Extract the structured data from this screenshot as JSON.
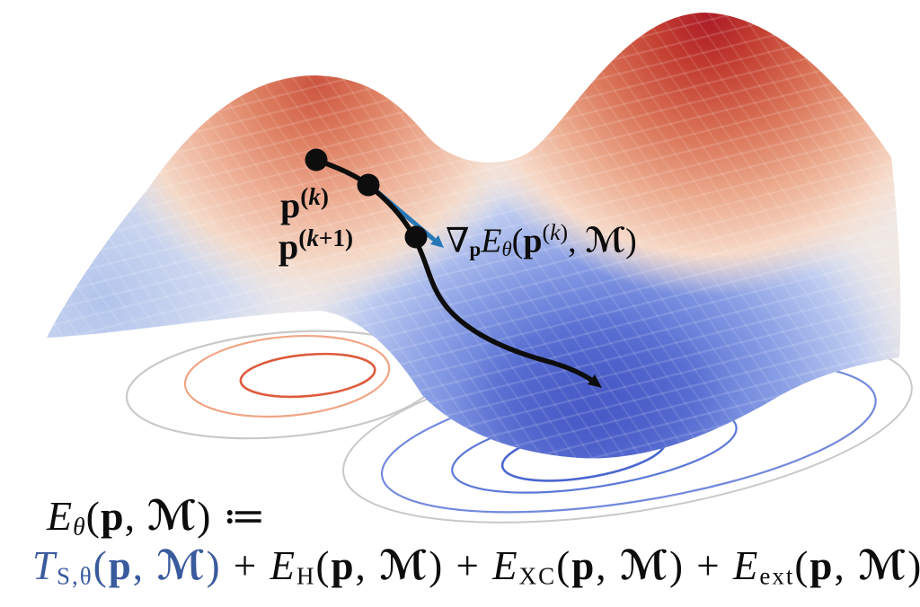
{
  "colors": {
    "ink": "#0d0d0d",
    "term-blue": "#3a5a9e",
    "arrow-blue": "#2878b8",
    "peak-red-dark": "#ad1c27",
    "peak-red-left": "#cc5a44",
    "valley-blue": "#4e62cc",
    "contour-grey": "#c9c9c9",
    "contour-orange": "#f2a584",
    "contour-red": "#de5b3c",
    "contour-blue-outer": "#7289dd",
    "contour-blue-mid": "#5b78d8",
    "contour-blue-inner": "#4b66d0"
  },
  "annotations": {
    "p_k": [
      {
        "t": "p",
        "cls": "b"
      },
      {
        "t": "(",
        "cls": "sup"
      },
      {
        "t": "k",
        "cls": "sup i"
      },
      {
        "t": ")",
        "cls": "sup"
      }
    ],
    "p_k_plus_1": [
      {
        "t": "p",
        "cls": "b"
      },
      {
        "t": "(",
        "cls": "sup"
      },
      {
        "t": "k",
        "cls": "sup i"
      },
      {
        "t": "+1)",
        "cls": "sup"
      }
    ],
    "gradient_term": [
      {
        "t": "∇",
        "cls": ""
      },
      {
        "t": "p",
        "cls": "sub b"
      },
      {
        "t": "E",
        "cls": "i"
      },
      {
        "t": "θ",
        "cls": "sub i"
      },
      {
        "t": "(",
        "cls": ""
      },
      {
        "t": "p",
        "cls": "b"
      },
      {
        "t": "(",
        "cls": "sup"
      },
      {
        "t": "k",
        "cls": "sup i"
      },
      {
        "t": ")",
        "cls": "sup"
      },
      {
        "t": ", ",
        "cls": ""
      },
      {
        "t": "ℳ",
        "cls": "bi"
      },
      {
        "t": ")",
        "cls": ""
      }
    ]
  },
  "equation": {
    "line1": [
      {
        "t": "E",
        "cls": "i"
      },
      {
        "t": "θ",
        "cls": "sub i"
      },
      {
        "t": "(",
        "cls": ""
      },
      {
        "t": "p",
        "cls": "b"
      },
      {
        "t": ", ",
        "cls": ""
      },
      {
        "t": "ℳ",
        "cls": "bi"
      },
      {
        "t": ")",
        "cls": ""
      },
      {
        "t": " ≔",
        "cls": ""
      }
    ],
    "line2": [
      {
        "t": "T",
        "cls": "i blue"
      },
      {
        "t": "S,θ",
        "cls": "sub blue"
      },
      {
        "t": "(",
        "cls": "blue"
      },
      {
        "t": "p",
        "cls": "b blue"
      },
      {
        "t": ", ",
        "cls": "blue"
      },
      {
        "t": "ℳ",
        "cls": "bi blue"
      },
      {
        "t": ")",
        "cls": "blue"
      },
      {
        "t": " + ",
        "cls": ""
      },
      {
        "t": "E",
        "cls": "i"
      },
      {
        "t": "H",
        "cls": "sub"
      },
      {
        "t": "(",
        "cls": ""
      },
      {
        "t": "p",
        "cls": "b"
      },
      {
        "t": ", ",
        "cls": ""
      },
      {
        "t": "ℳ",
        "cls": "bi"
      },
      {
        "t": ")",
        "cls": ""
      },
      {
        "t": " + ",
        "cls": ""
      },
      {
        "t": "E",
        "cls": "i"
      },
      {
        "t": "XC",
        "cls": "sub"
      },
      {
        "t": "(",
        "cls": ""
      },
      {
        "t": "p",
        "cls": "b"
      },
      {
        "t": ", ",
        "cls": ""
      },
      {
        "t": "ℳ",
        "cls": "bi"
      },
      {
        "t": ")",
        "cls": ""
      },
      {
        "t": " + ",
        "cls": ""
      },
      {
        "t": "E",
        "cls": "i"
      },
      {
        "t": "ext",
        "cls": "sub"
      },
      {
        "t": "(",
        "cls": ""
      },
      {
        "t": "p",
        "cls": "b"
      },
      {
        "t": ", ",
        "cls": ""
      },
      {
        "t": "ℳ",
        "cls": "bi"
      },
      {
        "t": ")",
        "cls": ""
      }
    ]
  }
}
